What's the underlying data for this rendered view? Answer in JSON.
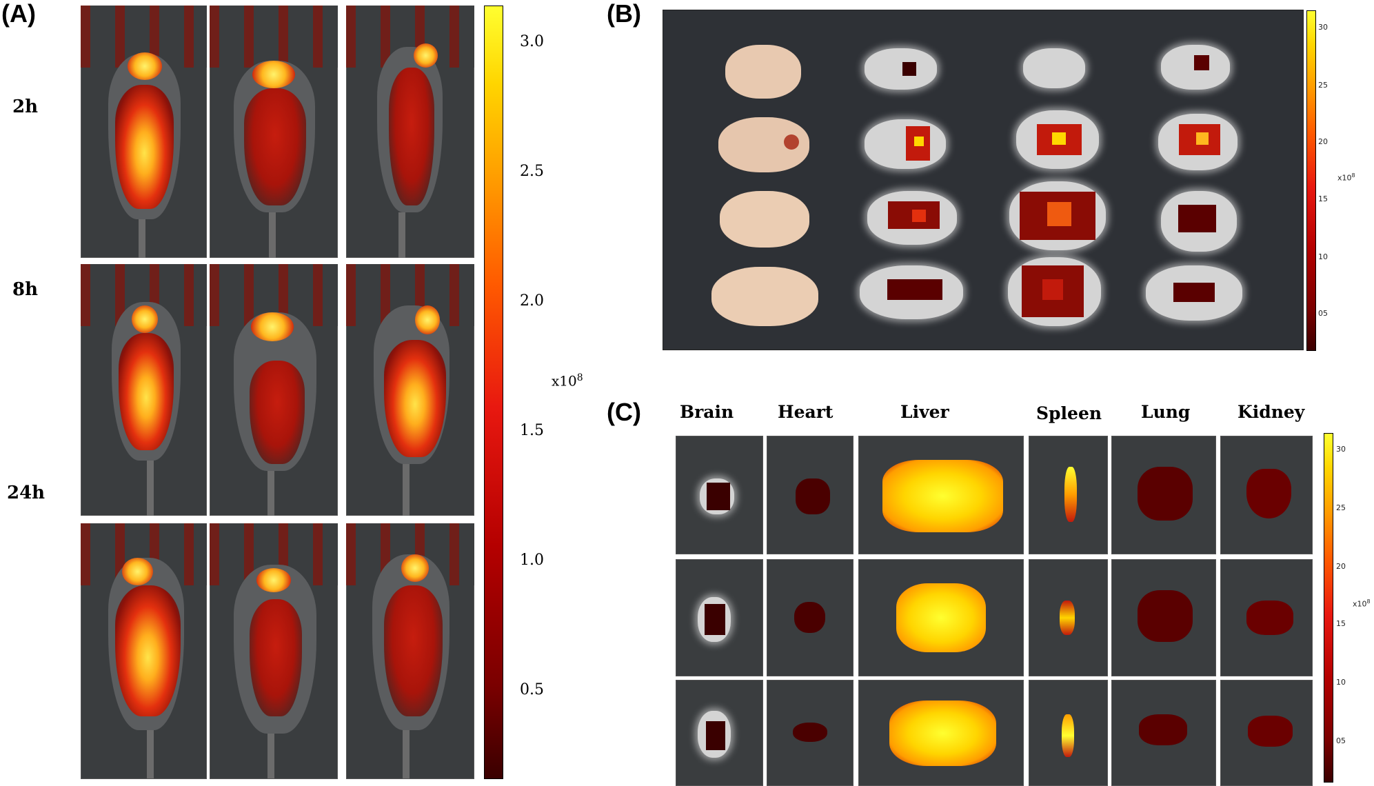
{
  "panels": {
    "a": "(A)",
    "b": "(B)",
    "c": "(C)"
  },
  "panel_a": {
    "rows": [
      "2h",
      "8h",
      "24h"
    ],
    "colorbar": {
      "ticks": [
        "3.0",
        "2.5",
        "2.0",
        "1.5",
        "1.0",
        "0.5"
      ],
      "unit": "x10",
      "unit_exp": "8"
    }
  },
  "panel_b": {
    "colorbar": {
      "ticks": [
        "30",
        "25",
        "20",
        "15",
        "10",
        "05"
      ],
      "unit": "x10",
      "unit_exp": "8"
    }
  },
  "panel_c": {
    "columns": [
      "Brain",
      "Heart",
      "Liver",
      "Spleen",
      "Lung",
      "Kidney"
    ],
    "colorbar": {
      "ticks": [
        "30",
        "25",
        "20",
        "15",
        "10",
        "05"
      ],
      "unit": "x10",
      "unit_exp": "8"
    }
  },
  "colors": {
    "background": "#3a3d3f",
    "low": "#3a0000",
    "mid": "#e81810",
    "high": "#ffff30"
  }
}
